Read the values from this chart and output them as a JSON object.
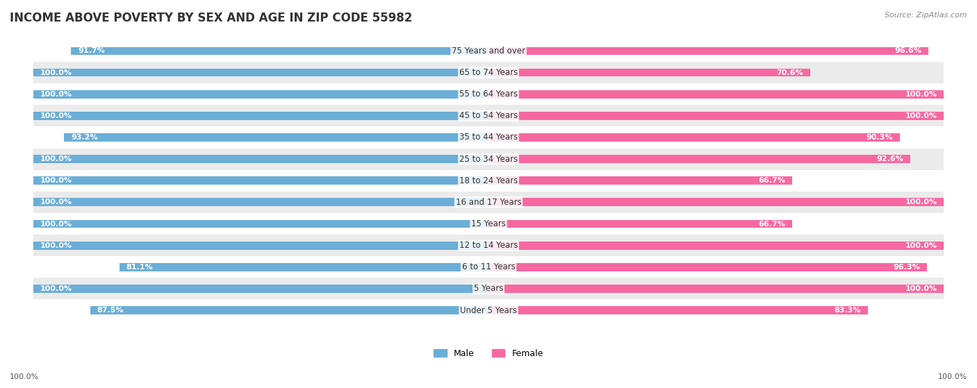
{
  "title": "INCOME ABOVE POVERTY BY SEX AND AGE IN ZIP CODE 55982",
  "source": "Source: ZipAtlas.com",
  "categories": [
    "Under 5 Years",
    "5 Years",
    "6 to 11 Years",
    "12 to 14 Years",
    "15 Years",
    "16 and 17 Years",
    "18 to 24 Years",
    "25 to 34 Years",
    "35 to 44 Years",
    "45 to 54 Years",
    "55 to 64 Years",
    "65 to 74 Years",
    "75 Years and over"
  ],
  "male_values": [
    87.5,
    100.0,
    81.1,
    100.0,
    100.0,
    100.0,
    100.0,
    100.0,
    93.2,
    100.0,
    100.0,
    100.0,
    91.7
  ],
  "female_values": [
    83.3,
    100.0,
    96.3,
    100.0,
    66.7,
    100.0,
    66.7,
    92.6,
    90.3,
    100.0,
    100.0,
    70.6,
    96.6
  ],
  "male_color": "#6baed6",
  "female_color": "#f768a1",
  "male_label": "Male",
  "female_label": "Female",
  "bar_height": 0.38,
  "background_color": "#f5f5f5",
  "row_bg_even": "#ffffff",
  "row_bg_odd": "#ebebeb",
  "title_fontsize": 12,
  "label_fontsize": 8.5,
  "value_fontsize": 8,
  "legend_fontsize": 9,
  "source_fontsize": 8,
  "xlim": [
    0,
    100
  ],
  "footer_male": "100.0%",
  "footer_female": "100.0%"
}
